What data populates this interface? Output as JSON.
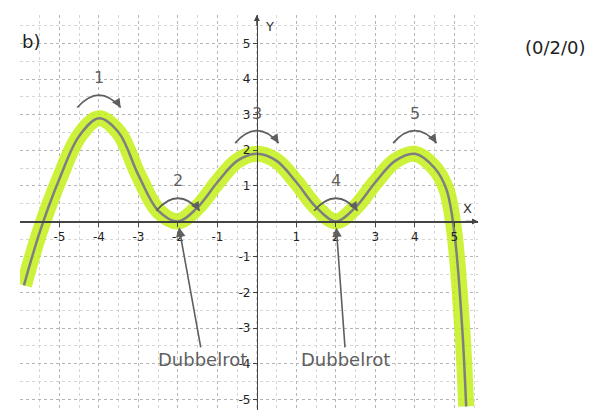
{
  "chart_data": {
    "type": "line",
    "title": "b)",
    "subtitle": "(0/2/0)",
    "x_label": "X",
    "y_label": "Y",
    "x": [
      -5.9,
      -5.5,
      -5.0,
      -4.5,
      -4.0,
      -3.5,
      -3.0,
      -2.5,
      -2.0,
      -1.5,
      -1.0,
      -0.5,
      0.0,
      0.5,
      1.0,
      1.5,
      2.0,
      2.5,
      3.0,
      3.5,
      4.0,
      4.5,
      4.8,
      5.0,
      5.2,
      5.3
    ],
    "values": [
      -1.8,
      -0.3,
      1.2,
      2.4,
      2.9,
      2.5,
      1.3,
      0.3,
      0.0,
      0.4,
      1.1,
      1.7,
      1.9,
      1.7,
      1.1,
      0.4,
      0.0,
      0.4,
      1.1,
      1.7,
      1.9,
      1.5,
      0.9,
      -0.3,
      -3.0,
      -5.2
    ],
    "color": "#7f7f7f",
    "xlim": [
      -6,
      5.6
    ],
    "ylim": [
      -5.3,
      5.8
    ],
    "xticks": [
      -5,
      -4,
      -3,
      -2,
      -1,
      1,
      2,
      3,
      4,
      5
    ],
    "yticks": [
      -5,
      -4,
      -3,
      -2,
      -1,
      1,
      2,
      3,
      4,
      5
    ],
    "grid": true,
    "turning_points": [
      {
        "text": "1",
        "x": -4,
        "y": 2.9
      },
      {
        "text": "2",
        "x": -2,
        "y": 0.0
      },
      {
        "text": "3",
        "x": 0,
        "y": 1.9
      },
      {
        "text": "4",
        "x": 2,
        "y": 0.0
      },
      {
        "text": "5",
        "x": 4,
        "y": 1.9
      }
    ],
    "annotations": [
      {
        "text": "Dubbelrot",
        "x": -2,
        "y": 0.0
      },
      {
        "text": "Dubbelrot",
        "x": 2,
        "y": 0.0
      }
    ]
  }
}
